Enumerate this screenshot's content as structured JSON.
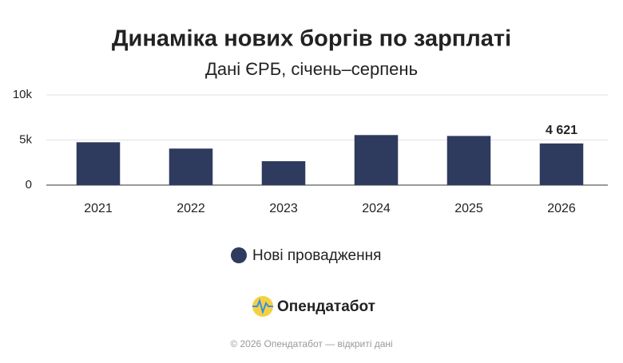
{
  "chart_data": {
    "type": "bar",
    "title": "Динаміка нових боргів по зарплаті",
    "subtitle": "Дані ЄРБ, січень–серпень",
    "categories": [
      "2021",
      "2022",
      "2023",
      "2024",
      "2025",
      "2026"
    ],
    "series": [
      {
        "name": "Нові провадження",
        "color": "#2e3b5e",
        "values": [
          4750,
          4050,
          2650,
          5550,
          5450,
          4621
        ],
        "value_labels": [
          null,
          null,
          null,
          null,
          null,
          "4 621"
        ]
      }
    ],
    "ylim": [
      0,
      10000
    ],
    "yticks": [
      0,
      {
        "value": 5000,
        "label": "5k"
      },
      {
        "value": 10000,
        "label": "10k"
      }
    ],
    "grid": true
  },
  "brand": "Опендатабот",
  "footer": "© 2026 Опендатабот — відкриті дані"
}
